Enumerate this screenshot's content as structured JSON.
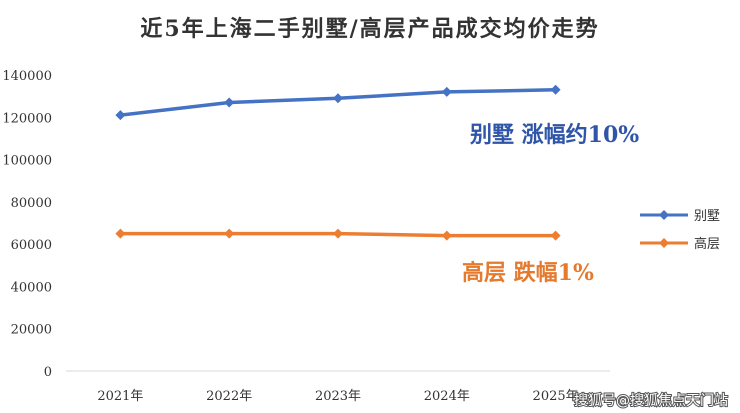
{
  "chart_data": {
    "type": "line",
    "title": "近5年上海二手别墅/高层产品成交均价走势",
    "categories": [
      "2021年",
      "2022年",
      "2023年",
      "2024年",
      "2025年"
    ],
    "yticks": [
      "0",
      "20000",
      "40000",
      "60000",
      "80000",
      "100000",
      "120000",
      "140000"
    ],
    "ylim": [
      0,
      140000
    ],
    "grid": false,
    "legend_position": "right",
    "series": [
      {
        "name": "别墅",
        "values": [
          121000,
          127000,
          129000,
          132000,
          133000
        ],
        "color": "#4472C4"
      },
      {
        "name": "高层",
        "values": [
          65000,
          65000,
          65000,
          64000,
          64000
        ],
        "color": "#ED7D31"
      }
    ],
    "annotations": [
      {
        "text": "别墅 涨幅约10%",
        "color": "#2F55A8"
      },
      {
        "text": "高层 跌幅1%",
        "color": "#E57A2E"
      }
    ]
  },
  "watermark": "搜狐号@搜狐焦点天门站"
}
